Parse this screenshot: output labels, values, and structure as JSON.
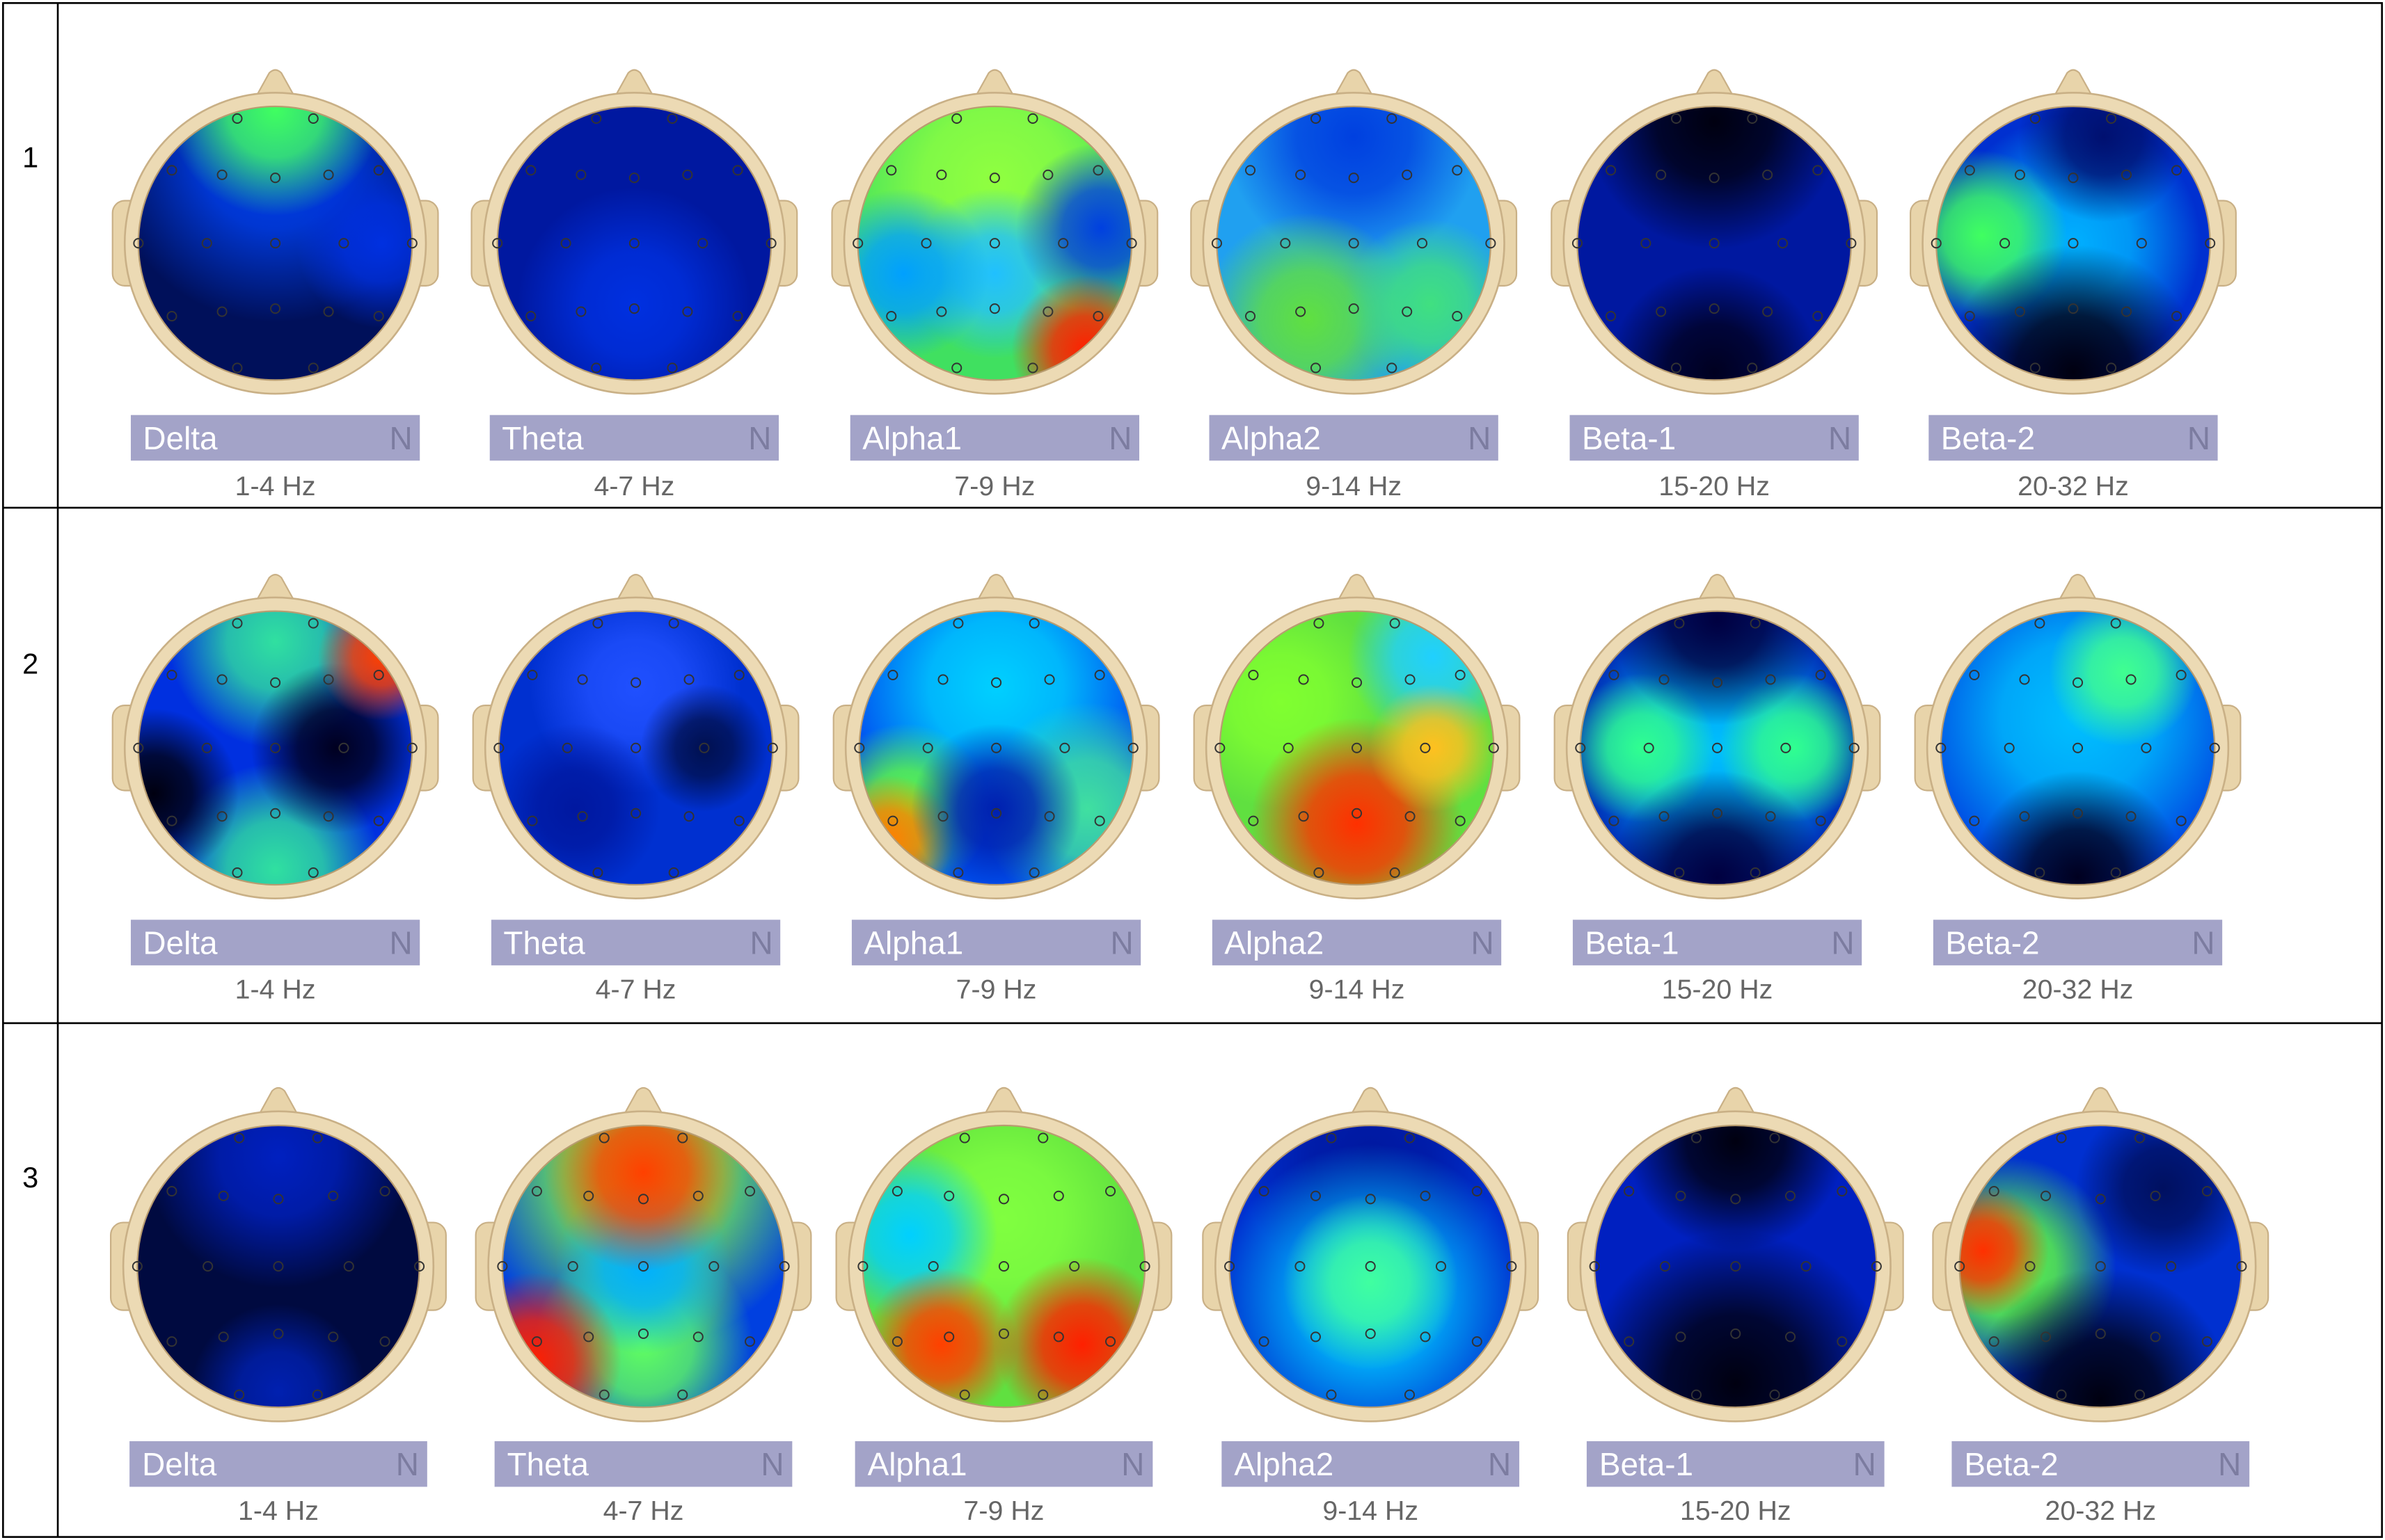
{
  "table": {
    "rows": [
      {
        "label": "1",
        "maps": [
          {
            "band": "Delta",
            "marker": "N",
            "range": "1-4 Hz"
          },
          {
            "band": "Theta",
            "marker": "N",
            "range": "4-7 Hz"
          },
          {
            "band": "Alpha1",
            "marker": "N",
            "range": "7-9 Hz"
          },
          {
            "band": "Alpha2",
            "marker": "N",
            "range": "9-14 Hz"
          },
          {
            "band": "Beta-1",
            "marker": "N",
            "range": "15-20 Hz"
          },
          {
            "band": "Beta-2",
            "marker": "N",
            "range": "20-32 Hz"
          }
        ]
      },
      {
        "label": "2",
        "maps": [
          {
            "band": "Delta",
            "marker": "N",
            "range": "1-4 Hz"
          },
          {
            "band": "Theta",
            "marker": "N",
            "range": "4-7 Hz"
          },
          {
            "band": "Alpha1",
            "marker": "N",
            "range": "7-9 Hz"
          },
          {
            "band": "Alpha2",
            "marker": "N",
            "range": "9-14 Hz"
          },
          {
            "band": "Beta-1",
            "marker": "N",
            "range": "15-20 Hz"
          },
          {
            "band": "Beta-2",
            "marker": "N",
            "range": "20-32 Hz"
          }
        ]
      },
      {
        "label": "3",
        "maps": [
          {
            "band": "Delta",
            "marker": "N",
            "range": "1-4 Hz"
          },
          {
            "band": "Theta",
            "marker": "N",
            "range": "4-7 Hz"
          },
          {
            "band": "Alpha1",
            "marker": "N",
            "range": "7-9 Hz"
          },
          {
            "band": "Alpha2",
            "marker": "N",
            "range": "9-14 Hz"
          },
          {
            "band": "Beta-1",
            "marker": "N",
            "range": "15-20 Hz"
          },
          {
            "band": "Beta-2",
            "marker": "N",
            "range": "20-32 Hz"
          }
        ]
      }
    ]
  }
}
